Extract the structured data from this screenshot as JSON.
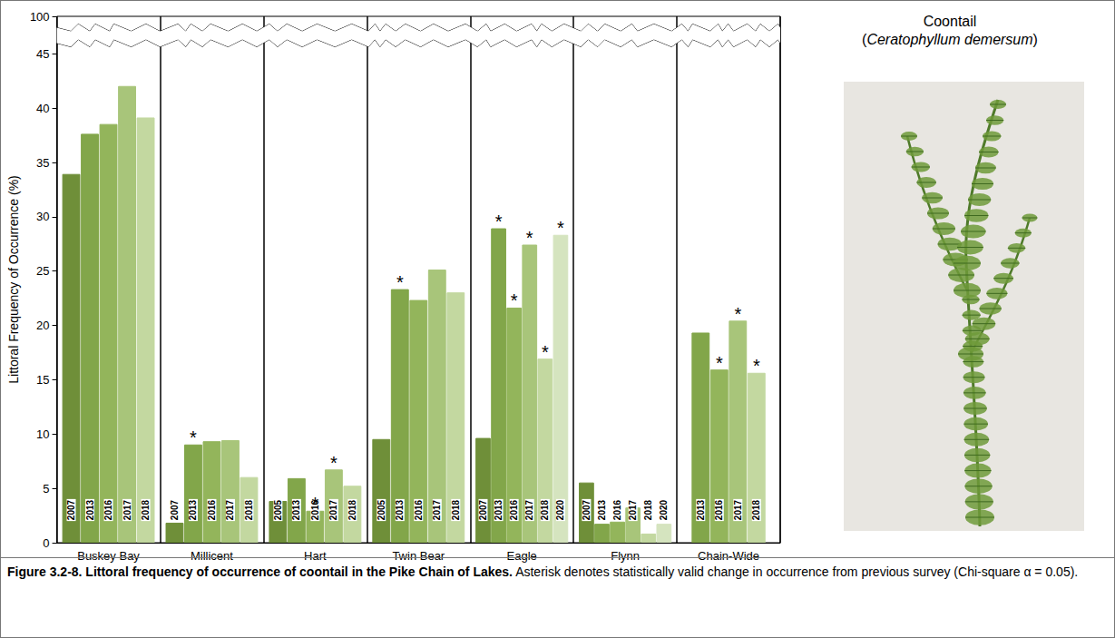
{
  "chart_data": {
    "type": "bar",
    "title": "Figure 3.2-8.  Littoral frequency of occurrence of coontail in the Pike Chain of Lakes.",
    "subtitle": "Asterisk denotes statistically valid change in occurrence from previous survey (Chi-square α = 0.05).",
    "y_label": "Littoral Frequency of Occurrence (%)",
    "image_title": "Coontail",
    "image_subtitle": "(Ceratophyllum demersum)",
    "significance_label": "*",
    "categories": [
      "Buskey Bay",
      "Millicent",
      "Hart",
      "Twin Bear",
      "Eagle",
      "Flynn",
      "Chain-Wide"
    ],
    "groups": [
      {
        "category": "Buskey Bay",
        "years": [
          "2007",
          "2013",
          "2016",
          "2017",
          "2018"
        ],
        "values": [
          33.9,
          37.6,
          38.5,
          42.0,
          39.1
        ],
        "significant": [
          false,
          false,
          false,
          false,
          false
        ],
        "colors": [
          "#6F8F39",
          "#82A64A",
          "#93B55B",
          "#A8C57A",
          "#C3D8A0"
        ]
      },
      {
        "category": "Millicent",
        "years": [
          "2007",
          "2013",
          "2016",
          "2017",
          "2018"
        ],
        "values": [
          1.8,
          9.0,
          9.3,
          9.4,
          6.0
        ],
        "significant": [
          false,
          true,
          false,
          false,
          false
        ],
        "colors": [
          "#6F8F39",
          "#82A64A",
          "#93B55B",
          "#A8C57A",
          "#C3D8A0"
        ]
      },
      {
        "category": "Hart",
        "years": [
          "2005",
          "2013",
          "2016",
          "2017",
          "2018"
        ],
        "values": [
          3.8,
          5.9,
          2.9,
          6.7,
          5.2
        ],
        "significant": [
          false,
          false,
          true,
          true,
          false
        ],
        "colors": [
          "#6F8F39",
          "#82A64A",
          "#93B55B",
          "#A8C57A",
          "#C3D8A0"
        ]
      },
      {
        "category": "Twin Bear",
        "years": [
          "2005",
          "2013",
          "2016",
          "2017",
          "2018"
        ],
        "values": [
          9.5,
          23.3,
          22.3,
          25.1,
          23.0
        ],
        "significant": [
          false,
          true,
          false,
          false,
          false
        ],
        "colors": [
          "#6F8F39",
          "#82A64A",
          "#93B55B",
          "#A8C57A",
          "#C3D8A0"
        ]
      },
      {
        "category": "Eagle",
        "years": [
          "2007",
          "2013",
          "2016",
          "2017",
          "2018",
          "2020"
        ],
        "values": [
          9.6,
          28.9,
          21.6,
          27.4,
          16.9,
          28.3
        ],
        "significant": [
          false,
          true,
          true,
          true,
          true,
          true
        ],
        "colors": [
          "#6F8F39",
          "#82A64A",
          "#93B55B",
          "#A8C57A",
          "#C3D8A0",
          "#D5E4BF"
        ]
      },
      {
        "category": "Flynn",
        "years": [
          "2007",
          "2013",
          "2016",
          "2017",
          "2018",
          "2020"
        ],
        "values": [
          5.5,
          1.7,
          1.9,
          3.2,
          0.8,
          1.7
        ],
        "significant": [
          false,
          false,
          false,
          false,
          false,
          false
        ],
        "colors": [
          "#6F8F39",
          "#82A64A",
          "#93B55B",
          "#A8C57A",
          "#C3D8A0",
          "#D5E4BF"
        ]
      },
      {
        "category": "Chain-Wide",
        "years": [
          "2013",
          "2016",
          "2017",
          "2018"
        ],
        "values": [
          19.3,
          15.9,
          20.4,
          15.6
        ],
        "significant": [
          false,
          true,
          true,
          true
        ],
        "colors": [
          "#82A64A",
          "#93B55B",
          "#A8C57A",
          "#C3D8A0"
        ]
      }
    ],
    "ylim": [
      0,
      100
    ],
    "yticks": [
      0,
      5,
      10,
      15,
      20,
      25,
      30,
      35,
      40,
      45,
      100
    ],
    "grid": false,
    "data_labels": false
  }
}
